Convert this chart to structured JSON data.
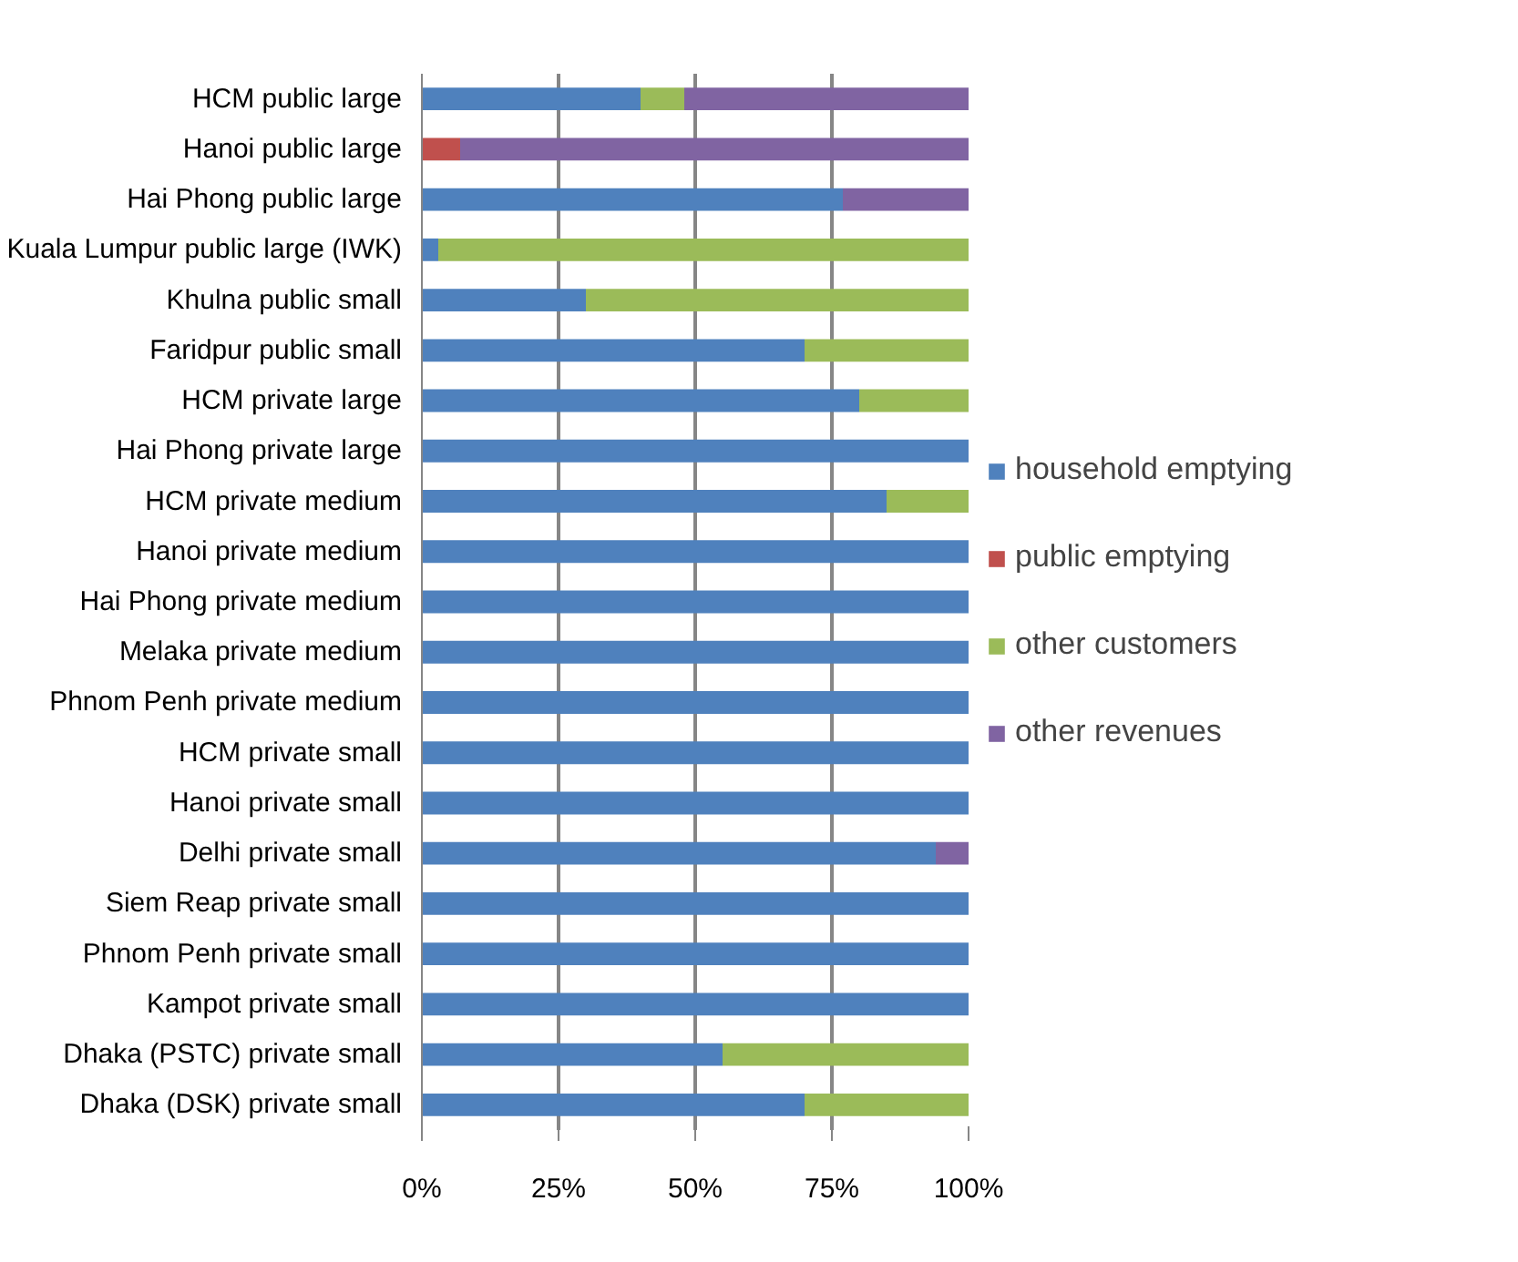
{
  "chart_data": {
    "type": "bar",
    "orientation": "horizontal",
    "stacked": true,
    "categories": [
      "HCM public large",
      "Hanoi public large",
      "Hai Phong public large",
      "Kuala Lumpur public large (IWK)",
      "Khulna public small",
      "Faridpur public small",
      "HCM private large",
      "Hai Phong private large",
      "HCM private medium",
      "Hanoi private medium",
      "Hai Phong private medium",
      "Melaka private medium",
      "Phnom Penh private medium",
      "HCM private small",
      "Hanoi private small",
      "Delhi private small",
      "Siem Reap private small",
      "Phnom Penh private small",
      "Kampot private small",
      "Dhaka (PSTC) private small",
      "Dhaka (DSK) private small"
    ],
    "series": [
      {
        "name": "household emptying",
        "color": "#4f81bd",
        "values": [
          40,
          0,
          77,
          3,
          30,
          70,
          80,
          100,
          85,
          100,
          100,
          100,
          100,
          100,
          100,
          94,
          100,
          100,
          100,
          55,
          70
        ]
      },
      {
        "name": "public emptying",
        "color": "#c0504d",
        "values": [
          0,
          7,
          0,
          0,
          0,
          0,
          0,
          0,
          0,
          0,
          0,
          0,
          0,
          0,
          0,
          0,
          0,
          0,
          0,
          0,
          0
        ]
      },
      {
        "name": "other customers",
        "color": "#9bbb59",
        "values": [
          8,
          0,
          0,
          97,
          70,
          30,
          20,
          0,
          15,
          0,
          0,
          0,
          0,
          0,
          0,
          0,
          0,
          0,
          0,
          45,
          30
        ]
      },
      {
        "name": "other revenues",
        "color": "#8064a2",
        "values": [
          52,
          93,
          23,
          0,
          0,
          0,
          0,
          0,
          0,
          0,
          0,
          0,
          0,
          0,
          0,
          6,
          0,
          0,
          0,
          0,
          0
        ]
      }
    ],
    "xlim": [
      0,
      100
    ],
    "xticks": [
      {
        "value": 0,
        "label": "0%"
      },
      {
        "value": 25,
        "label": "25%"
      },
      {
        "value": 50,
        "label": "50%"
      },
      {
        "value": 75,
        "label": "75%"
      },
      {
        "value": 100,
        "label": "100%"
      }
    ],
    "grid": "x",
    "legend": "right"
  }
}
